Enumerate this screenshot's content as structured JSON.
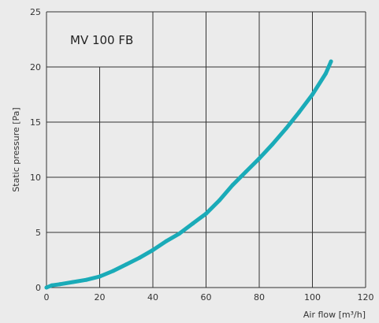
{
  "chart_data": {
    "type": "line",
    "title": "MV 100 FB",
    "xlabel": "Air flow [m³/h]",
    "ylabel": "Static pressure [Pa]",
    "xlim": [
      0,
      120
    ],
    "ylim": [
      0,
      25
    ],
    "x_ticks": [
      0,
      20,
      40,
      60,
      80,
      100,
      120
    ],
    "y_ticks": [
      0,
      5,
      10,
      15,
      20,
      25
    ],
    "grid": true,
    "colors": {
      "series": "#1aabb8",
      "grid": "#333333",
      "background": "#ebebeb"
    },
    "series": [
      {
        "x": [
          0,
          2,
          5,
          10,
          15,
          20,
          25,
          30,
          35,
          40,
          45,
          50,
          55,
          60,
          65,
          70,
          75,
          80,
          85,
          90,
          95,
          100,
          105,
          107
        ],
        "y": [
          0,
          0.2,
          0.3,
          0.5,
          0.7,
          1.0,
          1.5,
          2.1,
          2.7,
          3.4,
          4.2,
          4.9,
          5.8,
          6.7,
          7.9,
          9.3,
          10.5,
          11.7,
          13.0,
          14.4,
          15.9,
          17.5,
          19.4,
          20.5
        ]
      }
    ]
  }
}
